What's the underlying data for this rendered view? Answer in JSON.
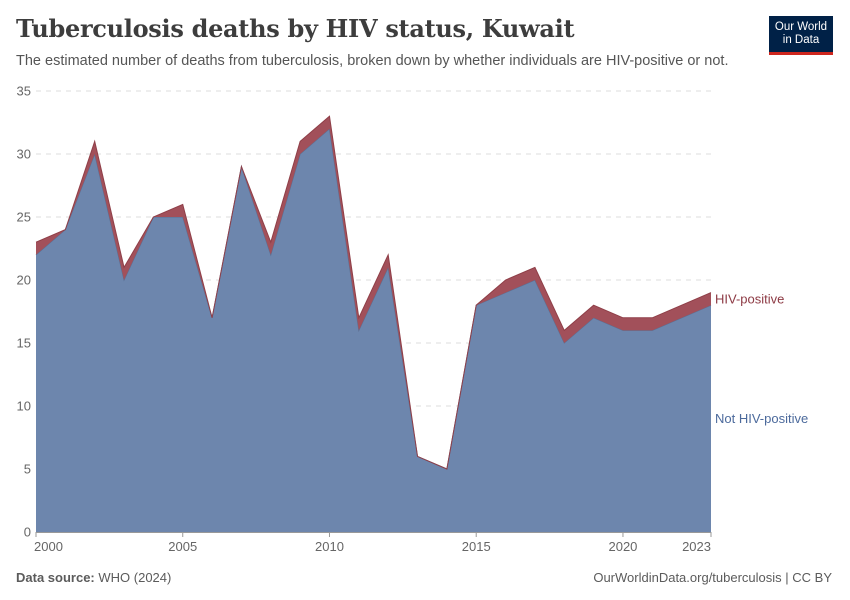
{
  "header": {
    "title": "Tuberculosis deaths by HIV status, Kuwait",
    "subtitle": "The estimated number of deaths from tuberculosis, broken down by whether individuals are HIV-positive or not.",
    "logo_line1": "Our World",
    "logo_line2": "in Data"
  },
  "footer": {
    "source_label": "Data source:",
    "source_value": "WHO (2024)",
    "credit": "OurWorldinData.org/tuberculosis | CC BY"
  },
  "colors": {
    "not_hiv": "#6d86ad",
    "hiv": "#a2505a",
    "hiv_label": "#8d3a44",
    "not_hiv_label": "#4c6a9c",
    "grid": "#dddddd",
    "axis_text": "#666666"
  },
  "chart_data": {
    "type": "area",
    "stacked": true,
    "x": [
      2000,
      2001,
      2002,
      2003,
      2004,
      2005,
      2006,
      2007,
      2008,
      2009,
      2010,
      2011,
      2012,
      2013,
      2014,
      2015,
      2016,
      2017,
      2018,
      2019,
      2020,
      2021,
      2022,
      2023
    ],
    "series": [
      {
        "name": "Not HIV-positive",
        "values": [
          22,
          24,
          30,
          20,
          25,
          25,
          17,
          29,
          22,
          30,
          32,
          16,
          21,
          6,
          5,
          18,
          19,
          20,
          15,
          17,
          16,
          16,
          17,
          18
        ]
      },
      {
        "name": "HIV-positive",
        "values": [
          1,
          0,
          1,
          1,
          0,
          1,
          0,
          0,
          1,
          1,
          1,
          1,
          1,
          0,
          0,
          0,
          1,
          1,
          1,
          1,
          1,
          1,
          1,
          1
        ]
      }
    ],
    "x_ticks": [
      "2000",
      "2005",
      "2010",
      "2015",
      "2020",
      "2023"
    ],
    "y_ticks": [
      "0",
      "5",
      "10",
      "15",
      "20",
      "25",
      "30",
      "35"
    ],
    "ylim": [
      0,
      35
    ],
    "xlim": [
      2000,
      2023
    ],
    "grid": "horizontal dashed",
    "legend": "right, inline labels"
  }
}
